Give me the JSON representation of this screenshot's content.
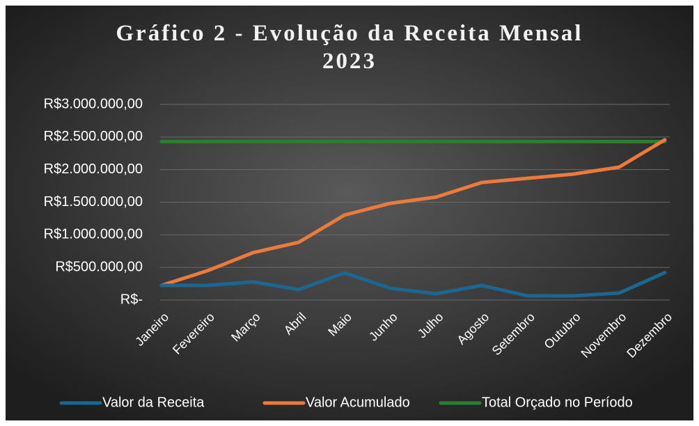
{
  "chart_data": {
    "type": "line",
    "title": "Gráfico 2 - Evolução da Receita Mensal 2023",
    "categories": [
      "Janeiro",
      "Fevereiro",
      "Março",
      "Abril",
      "Maio",
      "Junho",
      "Julho",
      "Agosto",
      "Setembro",
      "Outubro",
      "Novembro",
      "Dezembro"
    ],
    "series": [
      {
        "name": "Valor da Receita",
        "color": "#1c6791",
        "values": [
          224000,
          224000,
          278000,
          160000,
          417000,
          180000,
          96000,
          224000,
          64000,
          64000,
          107000,
          420000
        ]
      },
      {
        "name": "Valor Acumulado",
        "color": "#ec7a3c",
        "values": [
          224000,
          448000,
          726000,
          886000,
          1303000,
          1483000,
          1579000,
          1803000,
          1867000,
          1931000,
          2038000,
          2458000
        ]
      },
      {
        "name": "Total Orçado no Período",
        "color": "#2f7d2f",
        "values": [
          2430000,
          2430000,
          2430000,
          2430000,
          2430000,
          2430000,
          2430000,
          2430000,
          2430000,
          2430000,
          2430000,
          2430000
        ]
      }
    ],
    "ylim": [
      0,
      3000000
    ],
    "yticks": [
      {
        "value": 0,
        "label": "R$-"
      },
      {
        "value": 500000,
        "label": "R$500.000,00"
      },
      {
        "value": 1000000,
        "label": "R$1.000.000,00"
      },
      {
        "value": 1500000,
        "label": "R$1.500.000,00"
      },
      {
        "value": 2000000,
        "label": "R$2.000.000,00"
      },
      {
        "value": 2500000,
        "label": "R$2.500.000,00"
      },
      {
        "value": 3000000,
        "label": "R$3.000.000,00"
      }
    ],
    "grid": true,
    "legend": "bottom"
  }
}
